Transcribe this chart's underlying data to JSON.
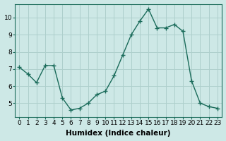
{
  "x": [
    0,
    1,
    2,
    3,
    4,
    5,
    6,
    7,
    8,
    9,
    10,
    11,
    12,
    13,
    14,
    15,
    16,
    17,
    18,
    19,
    20,
    21,
    22,
    23
  ],
  "y": [
    7.1,
    6.7,
    6.2,
    7.2,
    7.2,
    5.3,
    4.6,
    4.7,
    5.0,
    5.5,
    5.7,
    6.6,
    7.8,
    9.0,
    9.8,
    10.5,
    9.4,
    9.4,
    9.6,
    9.2,
    6.3,
    5.0,
    4.8,
    4.7
  ],
  "line_color": "#1a6b5a",
  "marker": "+",
  "marker_size": 4,
  "marker_linewidth": 1.0,
  "bg_color": "#cde8e6",
  "grid_color": "#aecfcc",
  "xlabel": "Humidex (Indice chaleur)",
  "xlim": [
    -0.5,
    23.5
  ],
  "ylim": [
    4.2,
    10.8
  ],
  "yticks": [
    5,
    6,
    7,
    8,
    9,
    10
  ],
  "xticks": [
    0,
    1,
    2,
    3,
    4,
    5,
    6,
    7,
    8,
    9,
    10,
    11,
    12,
    13,
    14,
    15,
    16,
    17,
    18,
    19,
    20,
    21,
    22,
    23
  ],
  "xlabel_fontsize": 7.5,
  "tick_fontsize": 6.5,
  "line_width": 1.0
}
